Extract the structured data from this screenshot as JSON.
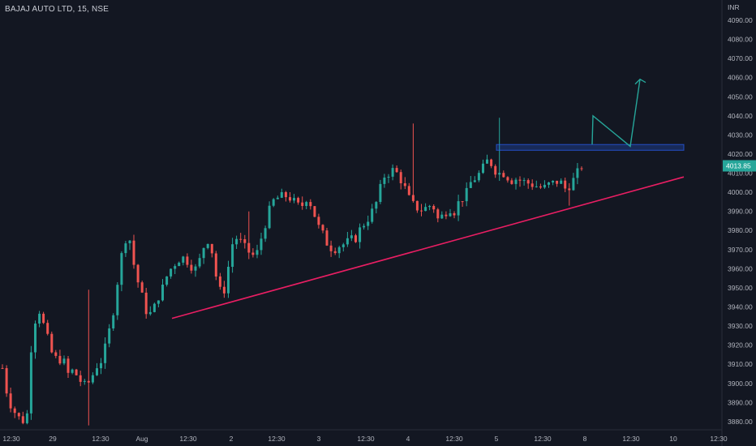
{
  "header": {
    "title": "BAJAJ AUTO LTD, 15, NSE"
  },
  "chart_data": {
    "type": "candlestick",
    "currency": "INR",
    "last_price": 4013.85,
    "ylim": [
      3877,
      4098
    ],
    "y_ticks": [
      3880,
      3890,
      3900,
      3910,
      3920,
      3930,
      3940,
      3950,
      3960,
      3970,
      3980,
      3990,
      4000,
      4010,
      4020,
      4030,
      4040,
      4050,
      4060,
      4070,
      4080,
      4090
    ],
    "y_tick_labels": [
      "3880.00",
      "3890.00",
      "3900.00",
      "3910.00",
      "3920.00",
      "3930.00",
      "3940.00",
      "3950.00",
      "3960.00",
      "3970.00",
      "3980.00",
      "3990.00",
      "4000.00",
      "4010.00",
      "4020.00",
      "4030.00",
      "4040.00",
      "4050.00",
      "4060.00",
      "4070.00",
      "4080.00",
      "4090.00"
    ],
    "x_labels": [
      "12:30",
      "29",
      "12:30",
      "Aug",
      "12:30",
      "2",
      "12:30",
      "3",
      "12:30",
      "4",
      "12:30",
      "5",
      "12:30",
      "8",
      "12:30",
      "10",
      "12:30"
    ],
    "waypoints": [
      [
        0,
        3908
      ],
      [
        4,
        3892
      ],
      [
        8,
        3886
      ],
      [
        12,
        3882
      ],
      [
        16,
        3880
      ],
      [
        18,
        3884
      ],
      [
        22,
        3930
      ],
      [
        27,
        3938
      ],
      [
        32,
        3926
      ],
      [
        36,
        3916
      ],
      [
        40,
        3912
      ],
      [
        44,
        3913
      ],
      [
        48,
        3905
      ],
      [
        52,
        3907
      ],
      [
        56,
        3902
      ],
      [
        60,
        3899
      ],
      [
        64,
        3901
      ],
      [
        68,
        3908
      ],
      [
        72,
        3913
      ],
      [
        76,
        3924
      ],
      [
        80,
        3938
      ],
      [
        84,
        3958
      ],
      [
        88,
        3976
      ],
      [
        92,
        3975
      ],
      [
        96,
        3958
      ],
      [
        100,
        3948
      ],
      [
        104,
        3938
      ],
      [
        108,
        3936
      ],
      [
        112,
        3944
      ],
      [
        116,
        3950
      ],
      [
        120,
        3958
      ],
      [
        124,
        3962
      ],
      [
        128,
        3965
      ],
      [
        132,
        3966
      ],
      [
        136,
        3962
      ],
      [
        140,
        3960
      ],
      [
        144,
        3966
      ],
      [
        148,
        3977
      ],
      [
        152,
        3969
      ],
      [
        156,
        3952
      ],
      [
        160,
        3945
      ],
      [
        164,
        3961
      ],
      [
        168,
        3977
      ],
      [
        172,
        3975
      ],
      [
        176,
        3971
      ],
      [
        180,
        3968
      ],
      [
        184,
        3966
      ],
      [
        188,
        3976
      ],
      [
        192,
        3986
      ],
      [
        196,
        3995
      ],
      [
        200,
        3997
      ],
      [
        204,
        3998
      ],
      [
        208,
        3998
      ],
      [
        212,
        3994
      ],
      [
        216,
        3992
      ],
      [
        220,
        3997
      ],
      [
        224,
        3993
      ],
      [
        228,
        3983
      ],
      [
        232,
        3978
      ],
      [
        236,
        3972
      ],
      [
        240,
        3970
      ],
      [
        244,
        3972
      ],
      [
        248,
        3973
      ],
      [
        252,
        3975
      ],
      [
        256,
        3976
      ],
      [
        260,
        3982
      ],
      [
        264,
        3985
      ],
      [
        268,
        3990
      ],
      [
        272,
        3996
      ],
      [
        276,
        4008
      ],
      [
        280,
        4010
      ],
      [
        284,
        4012
      ],
      [
        288,
        4008
      ],
      [
        292,
        4002
      ],
      [
        296,
        3995
      ],
      [
        300,
        3992
      ],
      [
        304,
        3991
      ],
      [
        308,
        3992
      ],
      [
        312,
        3994
      ],
      [
        316,
        3986
      ],
      [
        320,
        3988
      ],
      [
        324,
        3992
      ],
      [
        328,
        3990
      ],
      [
        332,
        3996
      ],
      [
        336,
        3998
      ],
      [
        340,
        4005
      ],
      [
        344,
        4008
      ],
      [
        348,
        4011
      ],
      [
        352,
        4018
      ],
      [
        356,
        4012
      ],
      [
        360,
        4010
      ],
      [
        364,
        4010
      ],
      [
        368,
        4006
      ],
      [
        372,
        4007
      ],
      [
        376,
        4006
      ],
      [
        380,
        4005
      ],
      [
        384,
        4004
      ],
      [
        388,
        4003
      ],
      [
        392,
        4002
      ],
      [
        396,
        4004
      ],
      [
        400,
        4005
      ],
      [
        404,
        4006
      ],
      [
        408,
        4002
      ],
      [
        412,
        4004
      ],
      [
        416,
        4009
      ],
      [
        420,
        4013.85
      ]
    ],
    "annotations": {
      "support_trendline": {
        "from": [
          "Aug 12:30",
          3934
        ],
        "to": [
          "10 12:30",
          4008
        ]
      },
      "resistance_zone": {
        "low": 4022,
        "high": 4025
      },
      "projection_path": [
        4040,
        4024,
        4060
      ]
    },
    "colors": {
      "up": "#26a69a",
      "down": "#ef5350",
      "trendline": "#e91e63",
      "zone": "#2962ff",
      "projection": "#26a69a",
      "price_tag": "#26a69a",
      "background": "#131722"
    },
    "grid": false,
    "legend": "none"
  }
}
